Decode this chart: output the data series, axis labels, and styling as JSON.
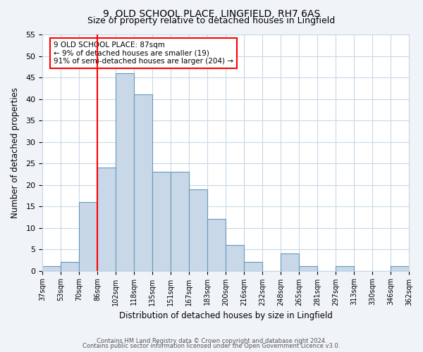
{
  "title_line1": "9, OLD SCHOOL PLACE, LINGFIELD, RH7 6AS",
  "title_line2": "Size of property relative to detached houses in Lingfield",
  "xlabel": "Distribution of detached houses by size in Lingfield",
  "ylabel": "Number of detached properties",
  "footer_line1": "Contains HM Land Registry data © Crown copyright and database right 2024.",
  "footer_line2": "Contains public sector information licensed under the Open Government Licence v3.0.",
  "bin_labels": [
    "37sqm",
    "53sqm",
    "70sqm",
    "86sqm",
    "102sqm",
    "118sqm",
    "135sqm",
    "151sqm",
    "167sqm",
    "183sqm",
    "200sqm",
    "216sqm",
    "232sqm",
    "248sqm",
    "265sqm",
    "281sqm",
    "297sqm",
    "313sqm",
    "330sqm",
    "346sqm",
    "362sqm"
  ],
  "bar_heights": [
    1,
    2,
    16,
    24,
    46,
    41,
    23,
    23,
    19,
    12,
    6,
    2,
    0,
    4,
    1,
    0,
    1,
    0,
    0,
    1
  ],
  "bar_color": "#c8d8e8",
  "bar_edge_color": "#6699bb",
  "property_line_bin_index": 3.0,
  "annotation_line1": "9 OLD SCHOOL PLACE: 87sqm",
  "annotation_line2": "← 9% of detached houses are smaller (19)",
  "annotation_line3": "91% of semi-detached houses are larger (204) →",
  "annotation_box_color": "white",
  "annotation_box_edge_color": "red",
  "ylim": [
    0,
    55
  ],
  "yticks": [
    0,
    5,
    10,
    15,
    20,
    25,
    30,
    35,
    40,
    45,
    50,
    55
  ],
  "background_color": "#f0f4f8",
  "plot_background_color": "white",
  "grid_color": "#c8d8e8",
  "vline_color": "red"
}
